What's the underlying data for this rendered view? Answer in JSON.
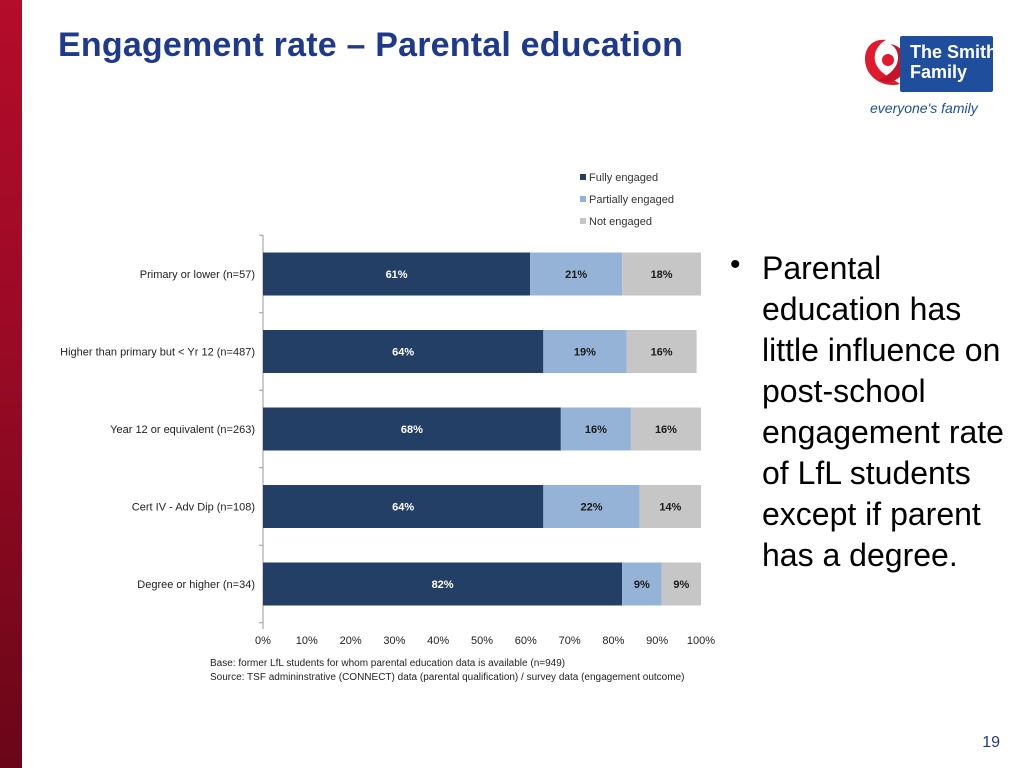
{
  "slide": {
    "title": "Engagement rate – Parental education",
    "page_number": "19",
    "bullet": "Parental education has little influence on post-school engagement rate of LfL students except if parent has a degree."
  },
  "logo": {
    "line1": "The Smith",
    "line2": "Family",
    "tagline": "everyone's family"
  },
  "chart_data": {
    "type": "bar",
    "orientation": "horizontal",
    "stacked": true,
    "categories": [
      "Primary or lower (n=57)",
      "Higher than primary but < Yr 12 (n=487)",
      "Year 12 or equivalent (n=263)",
      "Cert IV - Adv Dip (n=108)",
      "Degree or higher (n=34)"
    ],
    "series": [
      {
        "name": "Fully engaged",
        "color": "#243f66",
        "label_color": "#ffffff",
        "values": [
          61,
          64,
          68,
          64,
          82
        ]
      },
      {
        "name": "Partially engaged",
        "color": "#95b3d7",
        "label_color": "#1a1a1a",
        "values": [
          21,
          19,
          16,
          22,
          9
        ]
      },
      {
        "name": "Not engaged",
        "color": "#c6c6c6",
        "label_color": "#1a1a1a",
        "values": [
          18,
          16,
          16,
          14,
          9
        ]
      }
    ],
    "xlim": [
      0,
      100
    ],
    "x_ticks": [
      "0%",
      "10%",
      "20%",
      "30%",
      "40%",
      "50%",
      "60%",
      "70%",
      "80%",
      "90%",
      "100%"
    ],
    "legend_position": "top-right",
    "notes": [
      "Base: former LfL students  for whom parental education data is available (n=949)",
      "Source: TSF admininstrative (CONNECT) data  (parental qualification) / survey data (engagement outcome)"
    ]
  }
}
